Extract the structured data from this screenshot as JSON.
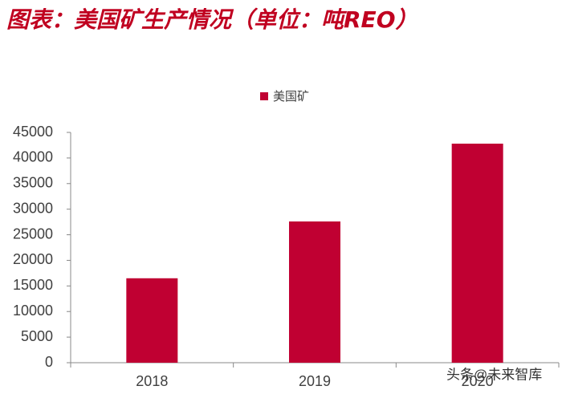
{
  "chart_data": {
    "type": "bar",
    "title": "图表：美国矿生产情况（单位：吨REO）",
    "categories": [
      "2018",
      "2019",
      "2020"
    ],
    "series": [
      {
        "name": "美国矿",
        "color": "#c00032",
        "values": [
          16500,
          27600,
          42800
        ]
      }
    ],
    "ylim": [
      0,
      45000
    ],
    "yticks": [
      0,
      5000,
      10000,
      15000,
      20000,
      25000,
      30000,
      35000,
      40000,
      45000
    ],
    "legend": "top",
    "watermark": "头条@未来智库"
  }
}
